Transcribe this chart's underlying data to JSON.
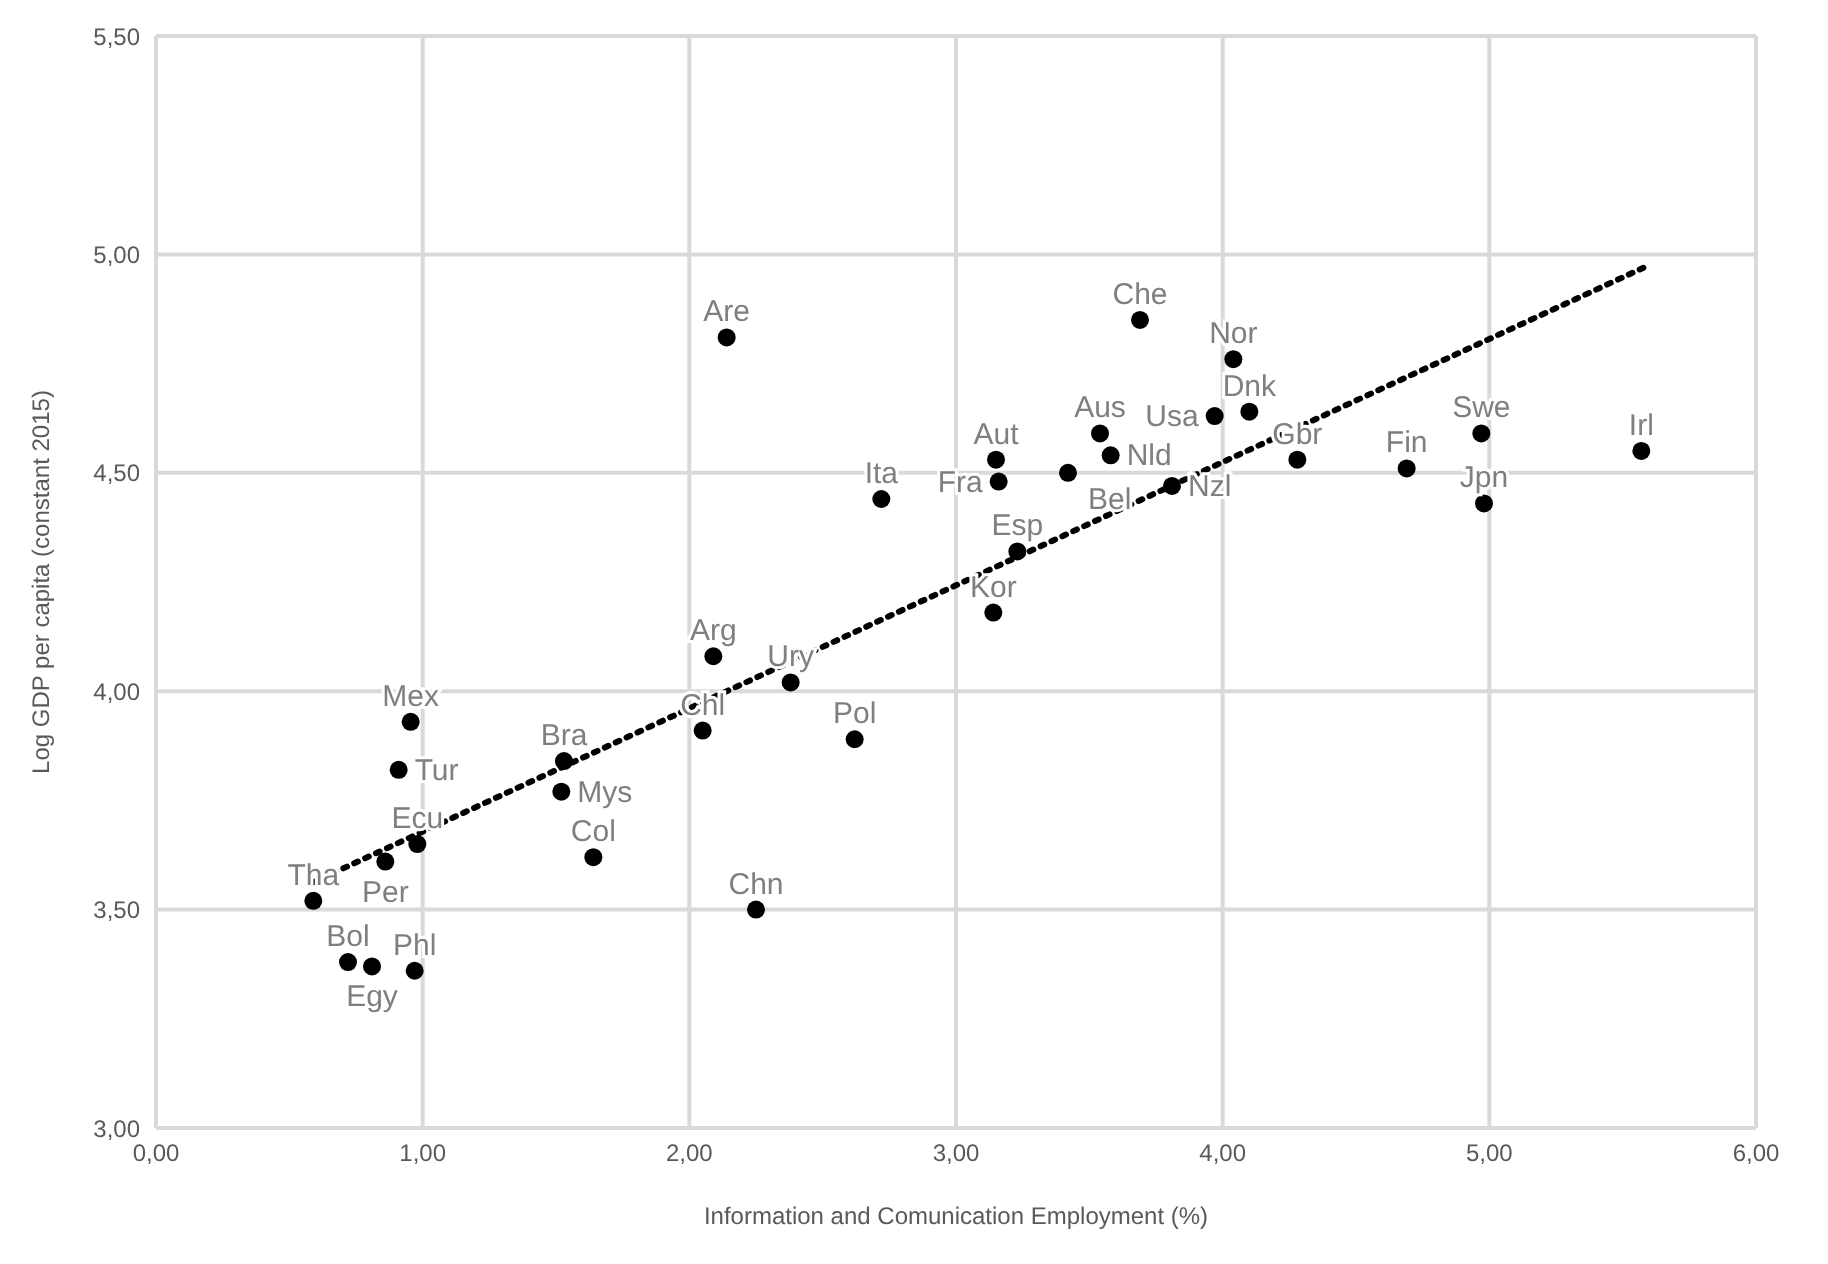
{
  "chart_data": {
    "type": "scatter",
    "xlabel": "Information and Comunication Employment (%)",
    "ylabel": "Log GDP per capita (constant 2015)",
    "xlim": [
      0,
      6
    ],
    "ylim": [
      3,
      5.5
    ],
    "xticks": [
      {
        "value": 0,
        "label": "0,00"
      },
      {
        "value": 1,
        "label": "1,00"
      },
      {
        "value": 2,
        "label": "2,00"
      },
      {
        "value": 3,
        "label": "3,00"
      },
      {
        "value": 4,
        "label": "4,00"
      },
      {
        "value": 5,
        "label": "5,00"
      },
      {
        "value": 6,
        "label": "6,00"
      }
    ],
    "yticks": [
      {
        "value": 3,
        "label": "3,00"
      },
      {
        "value": 3.5,
        "label": "3,50"
      },
      {
        "value": 4,
        "label": "4,00"
      },
      {
        "value": 4.5,
        "label": "4,50"
      },
      {
        "value": 5,
        "label": "5,00"
      },
      {
        "value": 5.5,
        "label": "5,50"
      }
    ],
    "grid": true,
    "legend": false,
    "marker": "circle",
    "series": [
      {
        "color": "#000000",
        "x": [
          0.59,
          0.72,
          0.81,
          0.97,
          0.86,
          0.98,
          0.91,
          0.955,
          1.53,
          1.52,
          1.64,
          2.05,
          2.09,
          2.25,
          2.38,
          2.62,
          2.14,
          2.72,
          3.14,
          3.23,
          3.15,
          3.16,
          3.42,
          3.54,
          3.58,
          3.69,
          3.81,
          3.97,
          4.04,
          4.1,
          4.28,
          4.69,
          4.97,
          4.98,
          5.57
        ],
        "values": [
          3.52,
          3.38,
          3.37,
          3.36,
          3.61,
          3.65,
          3.82,
          3.93,
          3.84,
          3.77,
          3.62,
          3.91,
          4.08,
          3.5,
          4.02,
          3.89,
          4.81,
          4.44,
          4.18,
          4.32,
          4.53,
          4.48,
          4.5,
          4.59,
          4.54,
          4.85,
          4.47,
          4.63,
          4.76,
          4.64,
          4.53,
          4.51,
          4.59,
          4.43,
          4.55
        ],
        "value_labels": [
          "Tha",
          "Bol",
          "Egy",
          "Phl",
          "Per",
          "Ecu",
          "Tur",
          "Mex",
          "Bra",
          "Mys",
          "Col",
          "Chl",
          "Arg",
          "Chn",
          "Ury",
          "Pol",
          "Are",
          "Ita",
          "Kor",
          "Esp",
          "Aut",
          "Fra",
          "Bel",
          "Aus",
          "Nld",
          "Che",
          "Nzl",
          "Usa",
          "Nor",
          "Dnk",
          "Gbr",
          "Fin",
          "Swe",
          "Jpn",
          "Irl"
        ]
      },
      {
        "type": "line",
        "color": "#000000",
        "line_style": "dotted",
        "marker": "none",
        "x": [
          0.58,
          5.58
        ],
        "values": [
          3.56,
          4.97
        ]
      }
    ]
  }
}
